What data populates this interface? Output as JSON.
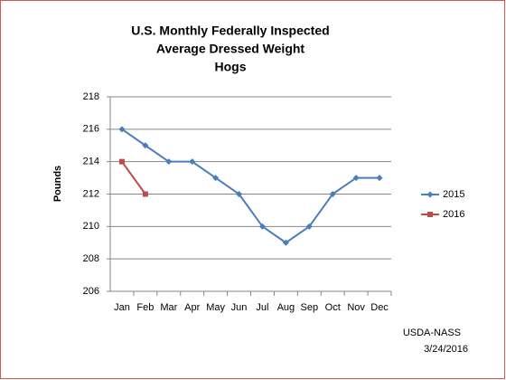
{
  "chart_data": {
    "type": "line",
    "title": [
      "U.S. Monthly Federally Inspected",
      "Average Dressed Weight",
      "Hogs"
    ],
    "y_label": "Pounds",
    "categories": [
      "Jan",
      "Feb",
      "Mar",
      "Apr",
      "May",
      "Jun",
      "Jul",
      "Aug",
      "Sep",
      "Oct",
      "Nov",
      "Dec"
    ],
    "series": [
      {
        "name": "2015",
        "color": "#4a7ebb",
        "marker": "diamond",
        "values": [
          216,
          215,
          214,
          214,
          213,
          212,
          210,
          209,
          210,
          212,
          213,
          213
        ]
      },
      {
        "name": "2016",
        "color": "#be4b48",
        "marker": "square",
        "values": [
          214,
          212,
          null,
          null,
          null,
          null,
          null,
          null,
          null,
          null,
          null,
          null
        ]
      }
    ],
    "ylim": [
      206,
      218
    ],
    "yticks": [
      206,
      208,
      210,
      212,
      214,
      216,
      218
    ],
    "grid": true,
    "legend": "right",
    "annotations": [
      "USDA-NASS",
      "3/24/2016"
    ]
  }
}
